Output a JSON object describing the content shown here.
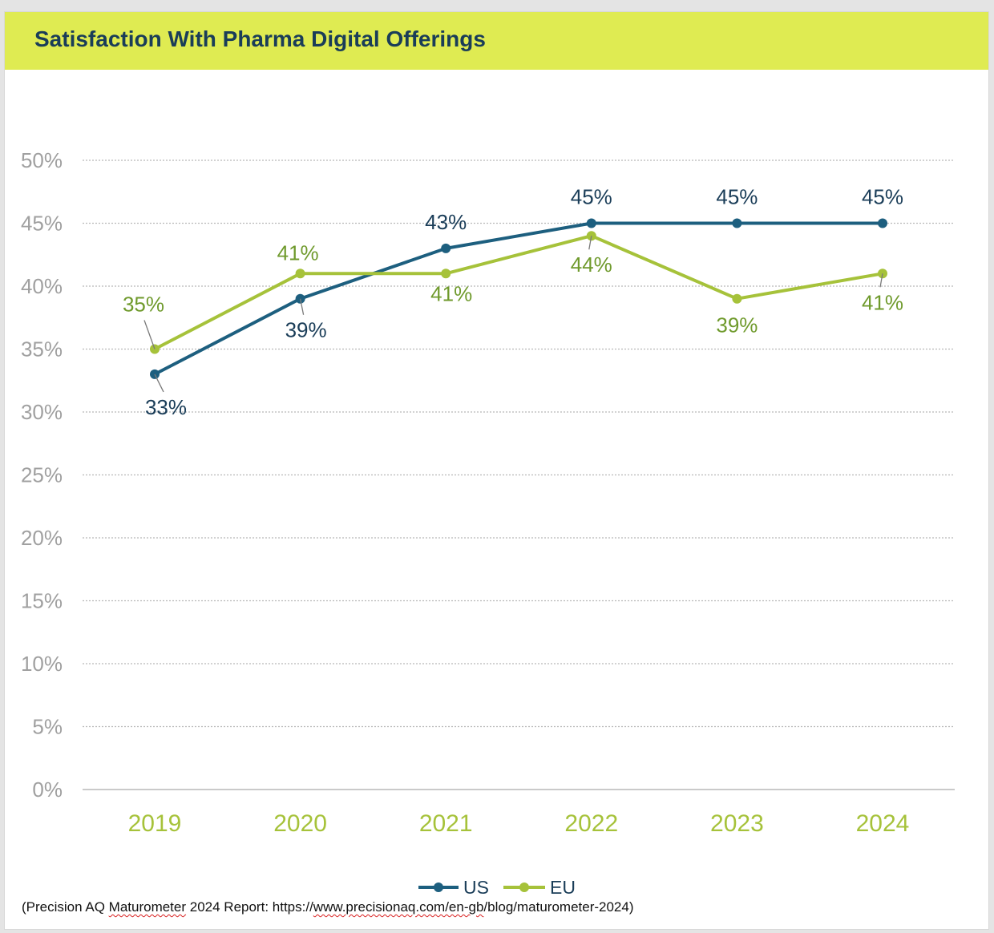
{
  "title": "Satisfaction With Pharma Digital Offerings",
  "source": {
    "prefix": "(Precision AQ ",
    "word": "Maturometer",
    "mid": " 2024 Report: https://",
    "url_spell": "www.precisionaq.com/en-gb",
    "suffix": "/blog/maturometer-2024)"
  },
  "colors": {
    "us": "#1d5f7f",
    "eu": "#a6c23a",
    "us_label": "#1a3d58",
    "eu_label": "#6f9a2c",
    "axis_label": "#a0a0a0",
    "x_tick": "#a6c23a"
  },
  "chart_data": {
    "type": "line",
    "title": "Satisfaction With Pharma Digital Offerings",
    "categories": [
      "2019",
      "2020",
      "2021",
      "2022",
      "2023",
      "2024"
    ],
    "series": [
      {
        "name": "US",
        "values": [
          33,
          39,
          43,
          45,
          45,
          45
        ],
        "labels": [
          "33%",
          "39%",
          "43%",
          "45%",
          "45%",
          "45%"
        ]
      },
      {
        "name": "EU",
        "values": [
          35,
          41,
          41,
          44,
          39,
          41
        ],
        "labels": [
          "35%",
          "41%",
          "41%",
          "44%",
          "39%",
          "41%"
        ]
      }
    ],
    "ylim": [
      0,
      50
    ],
    "yticks": [
      "0%",
      "5%",
      "10%",
      "15%",
      "20%",
      "25%",
      "30%",
      "35%",
      "40%",
      "45%",
      "50%"
    ],
    "grid": true,
    "legend": "bottom-center"
  }
}
